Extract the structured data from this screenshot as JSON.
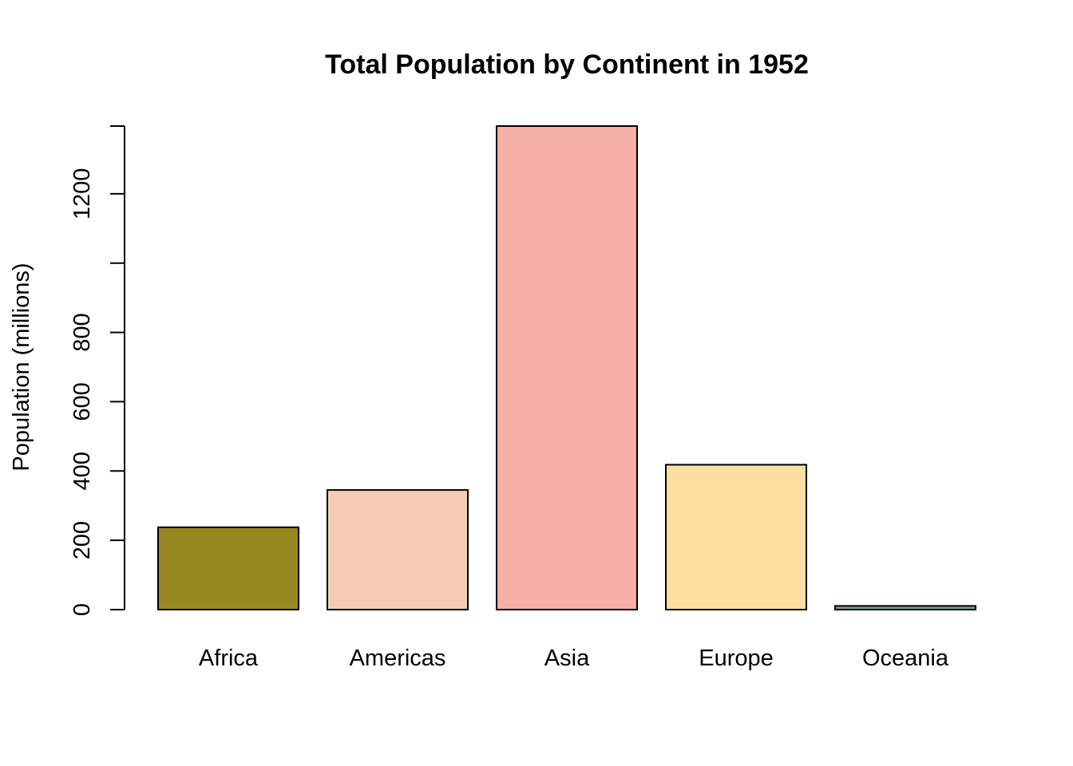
{
  "chart_data": {
    "type": "bar",
    "title": "Total Population by Continent in 1952",
    "xlabel": "",
    "ylabel": "Population (millions)",
    "categories": [
      "Africa",
      "Americas",
      "Asia",
      "Europe",
      "Oceania"
    ],
    "values": [
      237.6,
      345.2,
      1395.4,
      418.1,
      10.7
    ],
    "colors": [
      "#998722",
      "#F5CDB5",
      "#F7B0A9",
      "#FDDDA0",
      "#74A089"
    ],
    "ylim": [
      0,
      1395.4
    ],
    "yticks": [
      0,
      200,
      400,
      600,
      800,
      1000,
      1200,
      1395.4
    ],
    "ytick_labels": [
      "0",
      "200",
      "400",
      "600",
      "800",
      "",
      "1200",
      ""
    ],
    "grid": false,
    "legend": "none"
  }
}
